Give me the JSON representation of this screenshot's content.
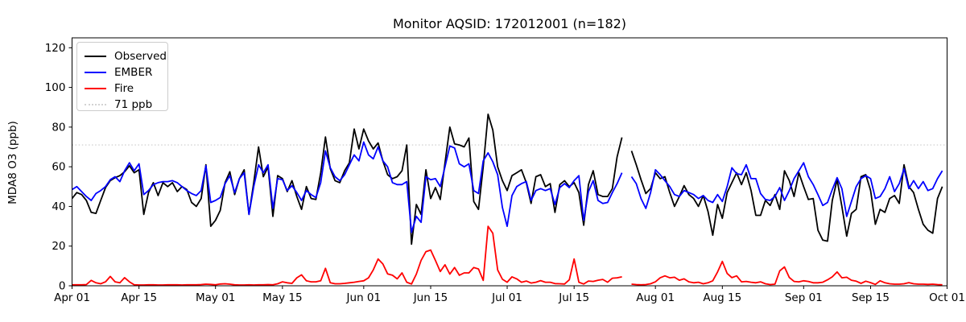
{
  "figure": {
    "title": "Monitor AQSID: 172012001 (n=182)",
    "y_axis_label": "MDA8 O3 (ppb)",
    "background_color": "#ffffff",
    "spine_color": "#000000"
  },
  "legend": {
    "items": [
      {
        "label": "Observed",
        "color": "#000000",
        "style": "solid"
      },
      {
        "label": "EMBER",
        "color": "#0000ff",
        "style": "solid"
      },
      {
        "label": "Fire",
        "color": "#ff0000",
        "style": "solid"
      },
      {
        "label": "71 ppb",
        "color": "#d3d3d3",
        "style": "dotted"
      }
    ]
  },
  "chart_data": {
    "type": "line",
    "title": "Monitor AQSID: 172012001 (n=182)",
    "xlabel": "",
    "ylabel": "MDA8 O3 (ppb)",
    "ylim": [
      0,
      125
    ],
    "grid": false,
    "legend_position": "upper left",
    "n_points": 182,
    "x_range": {
      "start_label": "Apr 01",
      "end_label": "Oct 01",
      "days": 183,
      "missing_day_label": "Jul 26"
    },
    "x_ticks": [
      {
        "label": "Apr 01",
        "day": 0
      },
      {
        "label": "Apr 15",
        "day": 14
      },
      {
        "label": "May 01",
        "day": 30
      },
      {
        "label": "May 15",
        "day": 44
      },
      {
        "label": "Jun 01",
        "day": 61
      },
      {
        "label": "Jun 15",
        "day": 75
      },
      {
        "label": "Jul 01",
        "day": 91
      },
      {
        "label": "Jul 15",
        "day": 105
      },
      {
        "label": "Aug 01",
        "day": 122
      },
      {
        "label": "Aug 15",
        "day": 136
      },
      {
        "label": "Sep 01",
        "day": 153
      },
      {
        "label": "Sep 15",
        "day": 167
      },
      {
        "label": "Oct 01",
        "day": 183
      }
    ],
    "y_ticks": [
      0,
      20,
      40,
      60,
      80,
      100,
      120
    ],
    "threshold": {
      "label": "71 ppb",
      "value": 71,
      "color": "#d3d3d3",
      "style": "dotted"
    },
    "series": [
      {
        "name": "Observed",
        "color": "#000000",
        "values": [
          44,
          47,
          46,
          43,
          37,
          36.5,
          43,
          49.5,
          53,
          54.5,
          55.5,
          57.5,
          60.5,
          57,
          58.5,
          36,
          47,
          52,
          45.5,
          52,
          50,
          52,
          47.5,
          50,
          48.5,
          42,
          40,
          44,
          61,
          30,
          33,
          38,
          52,
          57.5,
          46,
          54,
          58.5,
          36,
          52,
          70,
          55,
          60,
          35,
          55.5,
          54,
          47.5,
          53,
          45,
          38.5,
          50,
          44,
          43.5,
          57,
          75,
          59,
          53,
          52,
          58,
          62,
          79,
          69,
          79,
          73,
          69,
          72,
          63,
          56,
          54,
          55,
          58,
          71,
          21,
          41,
          36,
          58.5,
          44,
          49.5,
          43.5,
          62,
          80,
          71.5,
          71,
          70,
          74.5,
          42.5,
          38.5,
          60,
          86.5,
          78.5,
          60,
          53,
          48,
          55.5,
          57,
          58.5,
          52,
          41.5,
          55,
          56,
          50,
          51.5,
          37,
          51,
          53,
          50,
          52,
          47,
          30.5,
          51,
          58,
          46,
          45,
          45,
          49,
          65,
          74.8,
          null,
          68,
          61,
          53.5,
          46.5,
          49,
          57,
          54,
          55,
          47,
          40,
          45,
          50.5,
          46,
          44,
          40,
          45.5,
          37.5,
          25.5,
          41,
          34,
          47,
          52,
          57,
          51,
          57,
          48,
          35.5,
          35.5,
          43,
          40.5,
          46,
          38.5,
          58,
          53,
          45,
          57,
          50,
          43.5,
          44,
          28,
          23,
          22.5,
          43,
          53.5,
          40,
          25,
          36.5,
          38.5,
          55,
          56,
          48,
          31,
          38.5,
          37,
          44,
          45.5,
          41.5,
          61,
          50,
          47,
          38.5,
          31,
          28,
          26.5,
          44,
          50
        ]
      },
      {
        "name": "EMBER",
        "color": "#0000ff",
        "values": [
          48.5,
          50,
          47.5,
          45,
          43,
          46.5,
          48,
          50,
          53.5,
          55,
          52.5,
          58,
          62,
          58,
          61.5,
          46,
          48,
          51,
          52,
          52.5,
          52.5,
          53,
          52,
          50,
          48,
          46.5,
          45.5,
          48,
          60.5,
          42,
          43,
          44.5,
          51.5,
          55.5,
          47,
          54,
          57,
          36,
          50,
          61,
          57,
          61,
          39,
          54,
          53.5,
          48,
          50.5,
          47,
          43,
          48,
          46,
          44.5,
          52,
          68,
          59.5,
          55,
          53,
          56,
          61,
          66,
          63,
          72.5,
          66,
          64,
          70,
          63,
          60,
          52,
          51,
          51,
          52.5,
          27,
          35,
          32,
          55,
          53.5,
          54,
          50,
          60,
          70.5,
          69.5,
          61.5,
          60,
          61.5,
          48,
          46.5,
          63,
          67,
          62.5,
          56,
          39.5,
          30,
          45.5,
          50,
          51.5,
          52.5,
          43,
          48,
          49,
          48,
          49,
          41,
          49.5,
          51.5,
          49.5,
          53,
          55.5,
          33,
          47.5,
          53,
          43,
          41.5,
          42,
          47,
          51.5,
          57,
          null,
          55,
          51.5,
          44,
          39,
          47,
          58.5,
          56,
          53,
          50,
          46,
          45,
          48,
          47,
          46,
          44,
          45.5,
          43,
          42,
          46,
          42.5,
          50,
          59.5,
          56.5,
          56,
          61,
          54,
          54,
          46.5,
          43.5,
          43,
          45,
          49.5,
          43,
          48,
          54,
          58,
          62,
          55,
          51,
          46,
          40.5,
          42,
          48.5,
          54.5,
          49,
          35,
          42.5,
          50,
          54,
          55.5,
          54,
          44,
          45,
          49,
          55,
          47.5,
          51.5,
          59,
          49,
          53,
          49,
          52.5,
          48,
          49,
          54,
          58
        ]
      },
      {
        "name": "Fire",
        "color": "#ff0000",
        "values": [
          0.5,
          0.5,
          0.5,
          0.6,
          2.7,
          1.5,
          1,
          2,
          4.7,
          2,
          1.5,
          4.1,
          2,
          0.5,
          0.4,
          0.4,
          0.5,
          0.5,
          0.4,
          0.4,
          0.5,
          0.5,
          0.5,
          0.4,
          0.5,
          0.5,
          0.5,
          0.6,
          0.8,
          0.7,
          0.5,
          0.9,
          1,
          0.8,
          0.5,
          0.4,
          0.4,
          0.5,
          0.4,
          0.5,
          0.5,
          0.6,
          0.5,
          1,
          2,
          1.5,
          1.2,
          4,
          5.5,
          2.5,
          2,
          2,
          2.5,
          8.8,
          1.5,
          1,
          1,
          1.2,
          1.5,
          1.8,
          2.2,
          2.5,
          4,
          8,
          13.5,
          11,
          6,
          5.3,
          3.5,
          6.5,
          1.8,
          0.9,
          5.9,
          12.8,
          17.2,
          18,
          12.8,
          7.2,
          10.6,
          5.9,
          9.2,
          5.3,
          6.5,
          6.5,
          9.2,
          8.5,
          2.7,
          30,
          26.5,
          8,
          3.3,
          1.8,
          4.5,
          3.5,
          1.8,
          2.4,
          1.4,
          1.8,
          2.6,
          1.8,
          1.8,
          1.1,
          1,
          0.9,
          3,
          13.5,
          1.8,
          0.9,
          2.4,
          2.2,
          2.8,
          3.2,
          1.8,
          3.8,
          4,
          4.5,
          null,
          0.8,
          0.6,
          0.5,
          0.6,
          1,
          2,
          4,
          5,
          4,
          4.3,
          2.8,
          3.5,
          2,
          1.5,
          1.8,
          1,
          1.5,
          2.5,
          7,
          12.3,
          6.2,
          4.1,
          5,
          2,
          2.2,
          1.8,
          1.5,
          2,
          1,
          0.6,
          0.8,
          7.5,
          9.5,
          4.2,
          2.2,
          2,
          2.5,
          2.2,
          1.5,
          1.5,
          1.8,
          3,
          4.5,
          7,
          4,
          4.3,
          2.8,
          2.3,
          1.2,
          2.3,
          1.6,
          0.7,
          2.5,
          1.5,
          1,
          0.8,
          0.8,
          1,
          1.6,
          1,
          0.8,
          0.8,
          0.7,
          0.8,
          0.6,
          0.5
        ]
      }
    ]
  }
}
